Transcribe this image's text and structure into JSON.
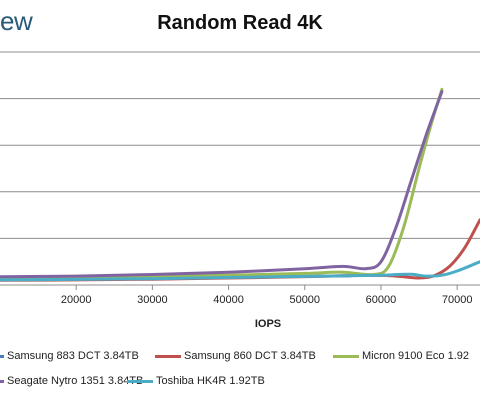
{
  "brand": "ew",
  "chart_data": {
    "type": "line",
    "title": "Random Read 4K",
    "xlabel": "IOPS",
    "ylabel": "",
    "xlim": [
      10000,
      73000
    ],
    "ylim": [
      0,
      1
    ],
    "x_ticks": [
      20000,
      30000,
      40000,
      50000,
      60000,
      70000
    ],
    "x_tick_labels": [
      "20000",
      "30000",
      "40000",
      "50000",
      "60000",
      "70000"
    ],
    "y_gridlines": [
      0.2,
      0.4,
      0.6,
      0.8,
      1.0
    ],
    "grid": "horizontal",
    "legend_position": "bottom",
    "series": [
      {
        "name": "Samsung 883 DCT 3.84TB",
        "color": "#4a7ebb",
        "x": [
          10000,
          20000,
          30000,
          40000,
          50000,
          56000
        ],
        "y": [
          0.025,
          0.027,
          0.03,
          0.033,
          0.037,
          0.039
        ]
      },
      {
        "name": "Samsung 860 DCT 3.84TB",
        "color": "#c0504d",
        "x": [
          10000,
          20000,
          30000,
          40000,
          50000,
          58000,
          62000,
          65000,
          67000,
          69000,
          71000,
          73000
        ],
        "y": [
          0.02,
          0.022,
          0.025,
          0.03,
          0.036,
          0.042,
          0.038,
          0.03,
          0.04,
          0.08,
          0.16,
          0.28
        ]
      },
      {
        "name": "Micron 9100 Eco 1.92",
        "color": "#9bbb59",
        "x": [
          10000,
          20000,
          30000,
          40000,
          50000,
          55000,
          59000,
          61000,
          63000,
          65000,
          66500,
          68000
        ],
        "y": [
          0.03,
          0.032,
          0.036,
          0.042,
          0.05,
          0.055,
          0.045,
          0.08,
          0.25,
          0.5,
          0.68,
          0.84
        ]
      },
      {
        "name": "Seagate Nytro 1351 3.84TB",
        "color": "#8064a2",
        "x": [
          10000,
          20000,
          30000,
          40000,
          50000,
          55000,
          58000,
          60000,
          62000,
          64000,
          66000,
          68000
        ],
        "y": [
          0.035,
          0.038,
          0.045,
          0.055,
          0.07,
          0.08,
          0.07,
          0.1,
          0.25,
          0.45,
          0.65,
          0.83
        ]
      },
      {
        "name": "Toshiba HK4R 1.92TB",
        "color": "#4bacc6",
        "x": [
          10000,
          20000,
          30000,
          40000,
          50000,
          60000,
          62000,
          64000,
          66000,
          68000,
          70000,
          73000
        ],
        "y": [
          0.022,
          0.024,
          0.027,
          0.032,
          0.037,
          0.042,
          0.045,
          0.046,
          0.038,
          0.042,
          0.06,
          0.1
        ]
      }
    ]
  }
}
